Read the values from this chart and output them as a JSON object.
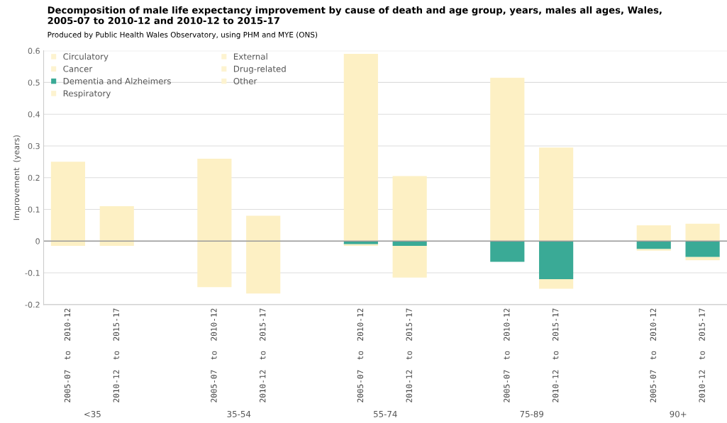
{
  "chart_data": {
    "type": "bar",
    "stacked": true,
    "title": "Decomposition of male life expectancy improvement by cause of death and age group, years, males all ages, Wales,\n2005-07 to 2010-12 and 2010-12 to 2015-17",
    "subtitle": "Produced by Public Health Wales Observatory, using PHM and MYE (ONS)",
    "ylabel": "Improvement  (years)",
    "categories": [
      "2005-07  to  2010-12",
      "2010-12  to  2015-17",
      null,
      "2005-07  to  2010-12",
      "2010-12  to  2015-17",
      null,
      "2005-07  to  2010-12",
      "2010-12  to  2015-17",
      null,
      "2005-07  to  2010-12",
      "2010-12  to  2015-17",
      null,
      "2005-07  to  2010-12",
      "2010-12  to  2015-17"
    ],
    "annotations": [
      "<35",
      "35-54",
      "55-74",
      "75-89",
      "90+"
    ],
    "series": [
      {
        "name": "Circulatory",
        "color": "#fdf3d0",
        "values": [
          null,
          null,
          null,
          null,
          null,
          null,
          null,
          null,
          null,
          null,
          null,
          null,
          null,
          null
        ]
      },
      {
        "name": "Cancer",
        "color": "#fdf3d0",
        "values": [
          null,
          null,
          null,
          null,
          null,
          null,
          null,
          null,
          null,
          null,
          null,
          null,
          null,
          null
        ]
      },
      {
        "name": "Dementia and Alzheimers",
        "color": "#3aaa96",
        "values": [
          0,
          0,
          null,
          0,
          0,
          null,
          -0.01,
          -0.015,
          null,
          -0.065,
          -0.12,
          null,
          -0.025,
          -0.05
        ]
      },
      {
        "name": "Respiratory",
        "color": "#fdf3d0",
        "values": [
          null,
          null,
          null,
          null,
          null,
          null,
          null,
          null,
          null,
          null,
          null,
          null,
          null,
          null
        ]
      },
      {
        "name": "External",
        "color": "#fdf3d0",
        "values": [
          null,
          null,
          null,
          null,
          null,
          null,
          null,
          null,
          null,
          null,
          null,
          null,
          null,
          null
        ]
      },
      {
        "name": "Drug-related",
        "color": "#fdf3d0",
        "values": [
          null,
          null,
          null,
          null,
          null,
          null,
          null,
          null,
          null,
          null,
          null,
          null,
          null,
          null
        ]
      },
      {
        "name": "Other",
        "color": "#fdf3d0",
        "values": [
          null,
          null,
          null,
          null,
          null,
          null,
          null,
          null,
          null,
          null,
          null,
          null,
          null,
          null
        ]
      },
      {
        "color": "#fdf0c4",
        "values": [
          0.25,
          0.11,
          null,
          0.26,
          0.08,
          null,
          0.59,
          0.205,
          null,
          0.515,
          0.295,
          null,
          0.05,
          0.055
        ]
      },
      {
        "color": "#fdf0c4",
        "values": [
          -0.015,
          -0.015,
          null,
          -0.145,
          -0.165,
          null,
          -0.005,
          -0.1,
          null,
          null,
          -0.03,
          null,
          -0.005,
          -0.01
        ]
      }
    ],
    "ylim": [
      -0.2,
      0.6
    ],
    "yticks": [
      -0.2,
      -0.1,
      0,
      0.1,
      0.2,
      0.3,
      0.4,
      0.5,
      0.6
    ],
    "grid": "y",
    "legend": "top left"
  }
}
